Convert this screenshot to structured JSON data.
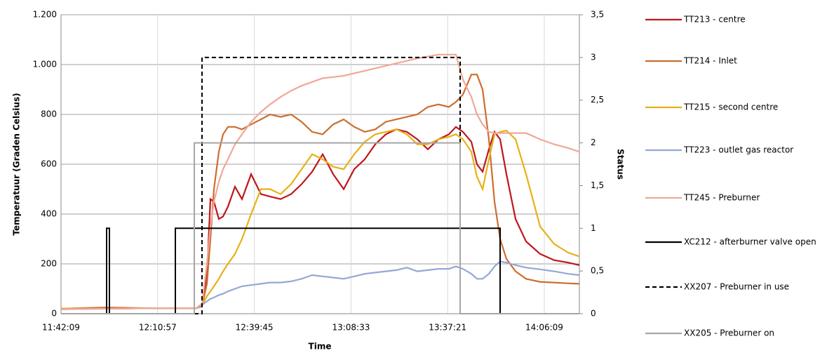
{
  "chart_data": {
    "type": "line",
    "xlabel": "Time",
    "ylabel": "Temperatuur (Graden Celsius)",
    "y2label": "Status",
    "xlim": [
      42129,
      51396
    ],
    "xticks": [
      {
        "value": 42129,
        "label": "11:42:09"
      },
      {
        "value": 43857,
        "label": "12:10:57"
      },
      {
        "value": 45585,
        "label": "12:39:45"
      },
      {
        "value": 47313,
        "label": "13:08:33"
      },
      {
        "value": 49041,
        "label": "13:37:21"
      },
      {
        "value": 50769,
        "label": "14:06:09"
      }
    ],
    "ylim": [
      0,
      1200
    ],
    "yticks": [
      0,
      200,
      400,
      600,
      800,
      {
        "value": 1000,
        "label": "1.000"
      },
      {
        "value": 1200,
        "label": "1.200"
      }
    ],
    "y2lim": [
      0,
      3.5
    ],
    "y2ticks": [
      0,
      {
        "value": 0.5,
        "label": "0,5"
      },
      1,
      {
        "value": 1.5,
        "label": "1,5"
      },
      2,
      {
        "value": 2.5,
        "label": "2,5"
      },
      3,
      {
        "value": 3.5,
        "label": "3,5"
      }
    ],
    "grid": true,
    "legend": "right",
    "x": [
      42129,
      42919,
      43797,
      44549,
      44650,
      44737,
      44800,
      44863,
      44951,
      45026,
      45114,
      45239,
      45364,
      45527,
      45703,
      45866,
      46054,
      46242,
      46430,
      46618,
      46806,
      46995,
      47183,
      47371,
      47559,
      47747,
      47935,
      48123,
      48311,
      48499,
      48687,
      48876,
      49064,
      49189,
      49314,
      49465,
      49565,
      49665,
      49778,
      49879,
      49979,
      50092,
      50255,
      50443,
      50694,
      50945,
      51195,
      51396
    ],
    "series": [
      {
        "name": "TT213 - centre",
        "color": "#c0161c",
        "values": [
          20,
          20,
          22,
          22,
          40,
          150,
          460,
          450,
          380,
          390,
          430,
          510,
          460,
          560,
          480,
          470,
          460,
          480,
          520,
          570,
          640,
          560,
          500,
          580,
          620,
          680,
          720,
          740,
          730,
          700,
          660,
          700,
          720,
          750,
          730,
          690,
          600,
          570,
          660,
          730,
          700,
          560,
          380,
          290,
          240,
          215,
          205,
          195
        ]
      },
      {
        "name": "TT214 - Inlet",
        "color": "#cc6e2e",
        "values": [
          20,
          25,
          22,
          22,
          30,
          120,
          300,
          500,
          650,
          720,
          750,
          750,
          740,
          760,
          780,
          800,
          790,
          800,
          770,
          730,
          720,
          760,
          780,
          750,
          730,
          740,
          770,
          780,
          790,
          800,
          830,
          840,
          830,
          850,
          880,
          960,
          960,
          900,
          700,
          450,
          300,
          220,
          170,
          140,
          128,
          125,
          122,
          120
        ]
      },
      {
        "name": "TT215 - second centre",
        "color": "#e6b117",
        "values": [
          20,
          20,
          22,
          22,
          35,
          70,
          90,
          110,
          140,
          170,
          200,
          240,
          300,
          400,
          500,
          500,
          480,
          520,
          580,
          640,
          620,
          590,
          580,
          640,
          690,
          720,
          730,
          740,
          720,
          680,
          680,
          700,
          710,
          720,
          700,
          650,
          550,
          500,
          620,
          720,
          730,
          735,
          700,
          560,
          350,
          280,
          245,
          230
        ]
      },
      {
        "name": "TT223 - outlet gas reactor",
        "color": "#93a8d6",
        "values": [
          18,
          20,
          22,
          22,
          35,
          50,
          60,
          65,
          75,
          80,
          90,
          100,
          110,
          115,
          120,
          125,
          125,
          130,
          140,
          155,
          150,
          145,
          140,
          150,
          160,
          165,
          170,
          175,
          185,
          170,
          175,
          180,
          180,
          190,
          180,
          160,
          140,
          140,
          160,
          190,
          210,
          205,
          195,
          185,
          178,
          170,
          160,
          155
        ]
      },
      {
        "name": "TT245 - Preburner",
        "color": "#f0a898",
        "values": [
          18,
          20,
          22,
          22,
          40,
          200,
          350,
          450,
          530,
          580,
          620,
          680,
          720,
          770,
          810,
          840,
          870,
          895,
          915,
          930,
          945,
          950,
          955,
          965,
          975,
          985,
          995,
          1005,
          1015,
          1025,
          1032,
          1040,
          1040,
          1040,
          940,
          870,
          800,
          760,
          730,
          725,
          725,
          725,
          725,
          725,
          700,
          680,
          665,
          650
        ]
      },
      {
        "name": "XC212 - afterburner valve open",
        "color": "#000000",
        "axis": "y2",
        "dash": "solid",
        "x": [
          42129,
          42944,
          42944,
          42994,
          42994,
          44173,
          44173,
          49979,
          49979,
          51396
        ],
        "values": [
          0,
          0,
          1,
          1,
          0,
          0,
          1,
          1,
          0,
          0
        ]
      },
      {
        "name": "XX207 - Preburner in use",
        "color": "#000000",
        "axis": "y2",
        "dash": "dashed",
        "x": [
          42129,
          44650,
          44650,
          49264,
          49264,
          51396
        ],
        "values": [
          0,
          0,
          3,
          3,
          0,
          0
        ]
      },
      {
        "name": "XX205 - Preburner on",
        "color": "#a6a6a6",
        "axis": "y2",
        "dash": "solid",
        "x": [
          42129,
          44512,
          44512,
          49264,
          49264,
          51396
        ],
        "values": [
          0,
          0,
          2,
          2,
          0,
          0
        ]
      }
    ]
  }
}
